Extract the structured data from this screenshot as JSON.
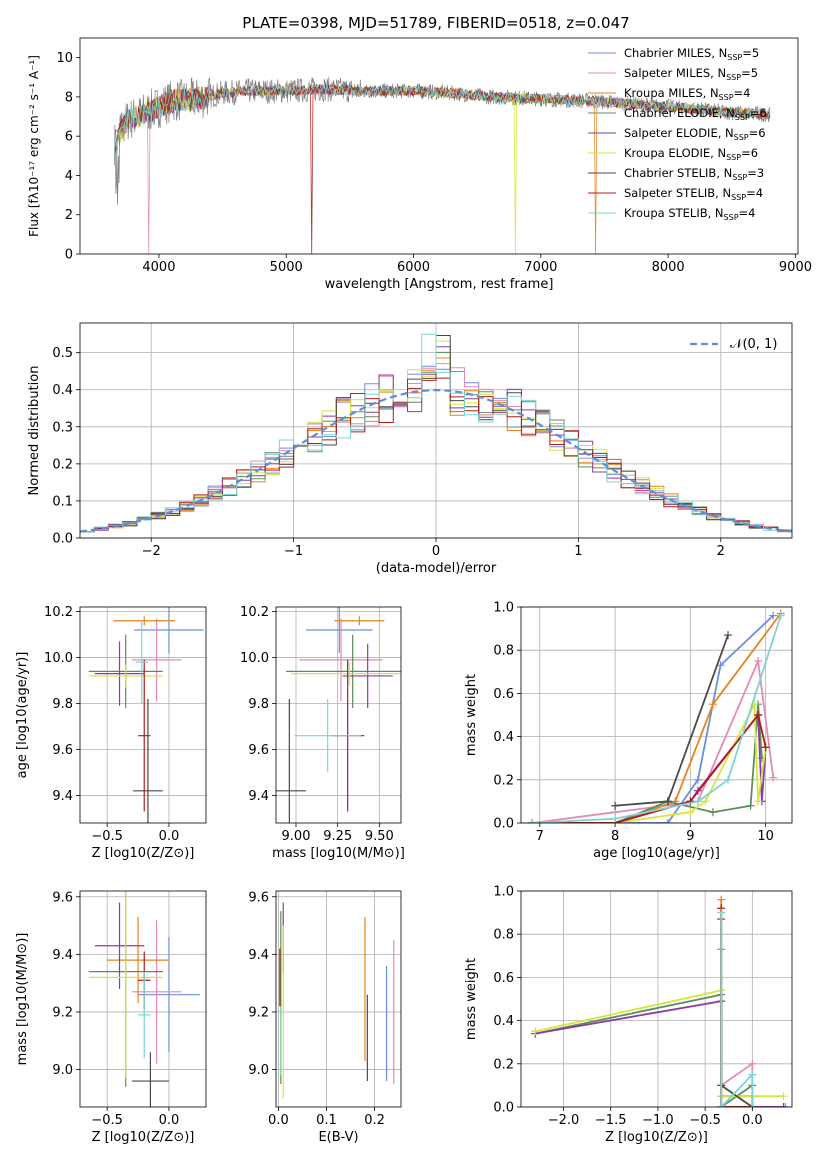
{
  "figure": {
    "title": "PLATE=0398, MJD=51789, FIBERID=0518, z=0.047"
  },
  "colors": {
    "model_colors": [
      "#6B8FDE",
      "#E58AB6",
      "#E8821F",
      "#5A8F5A",
      "#8E3AA6",
      "#D6E63C",
      "#4A4A4A",
      "#B31B1B",
      "#7FD3D6"
    ],
    "data_gray": "#808080",
    "grid": "#b0b0b0",
    "normal_curve": "#5B8EDB"
  },
  "legend_spectrum": [
    {
      "model": "Chabrier MILES",
      "nssp": "5"
    },
    {
      "model": "Salpeter MILES",
      "nssp": "5"
    },
    {
      "model": "Kroupa MILES",
      "nssp": "4"
    },
    {
      "model": "Chabrier ELODIE",
      "nssp": "6"
    },
    {
      "model": "Salpeter ELODIE",
      "nssp": "6"
    },
    {
      "model": "Kroupa ELODIE",
      "nssp": "6"
    },
    {
      "model": "Chabrier STELIB",
      "nssp": "3"
    },
    {
      "model": "Salpeter STELIB",
      "nssp": "4"
    },
    {
      "model": "Kroupa STELIB",
      "nssp": "4"
    }
  ],
  "legend_nssp_prefix": "N",
  "legend_nssp_sub": "SSP",
  "chart_data": [
    {
      "id": "spectrum",
      "type": "line",
      "xlabel": "wavelength [Angstrom, rest frame]",
      "ylabel": "Flux [fλ10⁻¹⁷ erg cm⁻² s⁻¹ A⁻¹]",
      "xlim": [
        3380,
        9020
      ],
      "ylim": [
        0,
        11
      ],
      "xticks": [
        4000,
        5000,
        6000,
        7000,
        8000,
        9000
      ],
      "yticks": [
        0,
        2,
        4,
        6,
        8,
        10
      ],
      "continuum": [
        [
          3650,
          5.6
        ],
        [
          3750,
          6.8
        ],
        [
          3900,
          7.2
        ],
        [
          4100,
          7.8
        ],
        [
          4300,
          7.9
        ],
        [
          4500,
          8.2
        ],
        [
          4700,
          8.3
        ],
        [
          5000,
          8.3
        ],
        [
          5300,
          8.4
        ],
        [
          5600,
          8.3
        ],
        [
          6000,
          8.3
        ],
        [
          6300,
          8.2
        ],
        [
          6600,
          8.0
        ],
        [
          7000,
          7.9
        ],
        [
          7400,
          7.8
        ],
        [
          7800,
          7.6
        ],
        [
          8200,
          7.4
        ],
        [
          8500,
          7.2
        ],
        [
          8800,
          7.1
        ]
      ],
      "notes": "9 model spectra overlaid on observed spectrum (gray); deep drops near 3930, 5200, 6800, 7430 Angstrom"
    },
    {
      "id": "residuals",
      "type": "histogram",
      "xlabel": "(data-model)/error",
      "ylabel": "Normed distribution",
      "xlim": [
        -2.5,
        2.5
      ],
      "ylim": [
        0,
        0.58
      ],
      "xticks": [
        -2,
        -1,
        0,
        1,
        2
      ],
      "yticks": [
        0.0,
        0.1,
        0.2,
        0.3,
        0.4,
        0.5
      ],
      "bin_width": 0.1,
      "bin_start": -2.5,
      "legend": "N(0,1)",
      "grid": true,
      "legend_position": "top-right"
    },
    {
      "id": "age_vs_Z",
      "type": "errorbar",
      "xlabel": "Z [log10(Z/Z⊙)]",
      "ylabel": "age  [log10(age/yr)]",
      "xlim": [
        -0.72,
        0.3
      ],
      "ylim": [
        9.28,
        10.22
      ],
      "xticks": [
        -0.5,
        0.0
      ],
      "yticks": [
        9.4,
        9.6,
        9.8,
        10.0,
        10.2
      ],
      "points": [
        {
          "x": 0.0,
          "xerr": 0.28,
          "y": 10.12,
          "yerr": 0.1
        },
        {
          "x": -0.1,
          "xerr": 0.2,
          "y": 9.99,
          "yerr": 0.18
        },
        {
          "x": -0.2,
          "xerr": 0.25,
          "y": 10.16,
          "yerr": 0.02
        },
        {
          "x": -0.35,
          "xerr": 0.3,
          "y": 9.94,
          "yerr": 0.16
        },
        {
          "x": -0.4,
          "xerr": 0.2,
          "y": 9.93,
          "yerr": 0.14
        },
        {
          "x": -0.35,
          "xerr": 0.3,
          "y": 9.92,
          "yerr": 0.05
        },
        {
          "x": -0.17,
          "xerr": 0.12,
          "y": 9.42,
          "yerr": 0.4
        },
        {
          "x": -0.2,
          "xerr": 0.05,
          "y": 9.66,
          "yerr": 0.33
        },
        {
          "x": -0.22,
          "xerr": 0.05,
          "y": 9.98,
          "yerr": 0.18
        }
      ]
    },
    {
      "id": "age_vs_mass",
      "type": "errorbar",
      "xlabel": "mass [log10(M/M⊙)]",
      "ylabel": "",
      "xlim": [
        8.88,
        9.63
      ],
      "ylim": [
        9.28,
        10.22
      ],
      "xticks": [
        9.0,
        9.25,
        9.5
      ],
      "yticks": [
        9.4,
        9.6,
        9.8,
        10.0,
        10.2
      ],
      "points": [
        {
          "x": 9.26,
          "xerr": 0.2,
          "y": 10.12,
          "yerr": 0.1
        },
        {
          "x": 9.27,
          "xerr": 0.25,
          "y": 9.99,
          "yerr": 0.18
        },
        {
          "x": 9.38,
          "xerr": 0.15,
          "y": 10.16,
          "yerr": 0.02
        },
        {
          "x": 9.34,
          "xerr": 0.4,
          "y": 9.94,
          "yerr": 0.16
        },
        {
          "x": 9.43,
          "xerr": 0.15,
          "y": 9.92,
          "yerr": 0.14
        },
        {
          "x": 9.32,
          "xerr": 0.35,
          "y": 9.93,
          "yerr": 0.05
        },
        {
          "x": 8.96,
          "xerr": 0.1,
          "y": 9.42,
          "yerr": 0.4
        },
        {
          "x": 9.31,
          "xerr": 0.1,
          "y": 9.66,
          "yerr": 0.33
        },
        {
          "x": 9.19,
          "xerr": 0.2,
          "y": 9.66,
          "yerr": 0.16
        }
      ]
    },
    {
      "id": "weight_vs_age",
      "type": "line",
      "xlabel": "age  [log10(age/yr)]",
      "ylabel": "mass weight",
      "xlim": [
        6.75,
        10.35
      ],
      "ylim": [
        0,
        1.0
      ],
      "xticks": [
        7,
        8,
        9,
        10
      ],
      "yticks": [
        0.0,
        0.2,
        0.4,
        0.6,
        0.8,
        1.0
      ],
      "series": [
        {
          "points": [
            [
              6.9,
              0.0
            ],
            [
              8.7,
              0.0
            ],
            [
              9.1,
              0.2
            ],
            [
              9.4,
              0.73
            ],
            [
              10.1,
              0.96
            ]
          ]
        },
        {
          "points": [
            [
              6.9,
              0.0
            ],
            [
              8.0,
              0.05
            ],
            [
              9.1,
              0.1
            ],
            [
              9.9,
              0.75
            ],
            [
              10.1,
              0.21
            ]
          ]
        },
        {
          "points": [
            [
              6.9,
              0.0
            ],
            [
              8.0,
              0.0
            ],
            [
              8.8,
              0.1
            ],
            [
              9.3,
              0.55
            ],
            [
              10.2,
              0.97
            ]
          ]
        },
        {
          "points": [
            [
              6.9,
              0.0
            ],
            [
              8.0,
              0.0
            ],
            [
              8.7,
              0.1
            ],
            [
              9.3,
              0.05
            ],
            [
              9.8,
              0.08
            ],
            [
              9.9,
              0.55
            ],
            [
              9.95,
              0.3
            ]
          ]
        },
        {
          "points": [
            [
              6.9,
              0.0
            ],
            [
              8.0,
              0.0
            ],
            [
              9.0,
              0.1
            ],
            [
              9.1,
              0.15
            ],
            [
              9.9,
              0.5
            ],
            [
              9.95,
              0.1
            ],
            [
              10.0,
              0.35
            ]
          ]
        },
        {
          "points": [
            [
              6.9,
              0.0
            ],
            [
              8.0,
              0.0
            ],
            [
              9.0,
              0.05
            ],
            [
              9.2,
              0.1
            ],
            [
              9.85,
              0.55
            ],
            [
              9.9,
              0.1
            ],
            [
              10.0,
              0.35
            ]
          ]
        },
        {
          "points": [
            [
              8.0,
              0.08
            ],
            [
              8.7,
              0.1
            ],
            [
              9.5,
              0.87
            ]
          ]
        },
        {
          "points": [
            [
              6.9,
              0.0
            ],
            [
              8.0,
              0.0
            ],
            [
              9.0,
              0.1
            ],
            [
              9.9,
              0.5
            ],
            [
              10.0,
              0.35
            ]
          ]
        },
        {
          "points": [
            [
              6.9,
              0.0
            ],
            [
              8.0,
              0.02
            ],
            [
              9.1,
              0.1
            ],
            [
              9.5,
              0.2
            ],
            [
              10.2,
              0.96
            ]
          ]
        }
      ]
    },
    {
      "id": "mass_vs_Z",
      "type": "errorbar",
      "xlabel": "Z [log10(Z/Z⊙)]",
      "ylabel": "mass [log10(M/M⊙)]",
      "xlim": [
        -0.72,
        0.3
      ],
      "ylim": [
        8.87,
        9.62
      ],
      "xticks": [
        -0.5,
        0.0
      ],
      "yticks": [
        9.0,
        9.2,
        9.4,
        9.6
      ],
      "points": [
        {
          "x": 0.0,
          "xerr": 0.25,
          "y": 9.26,
          "yerr": 0.2
        },
        {
          "x": -0.1,
          "xerr": 0.2,
          "y": 9.27,
          "yerr": 0.25
        },
        {
          "x": -0.25,
          "xerr": 0.25,
          "y": 9.38,
          "yerr": 0.15
        },
        {
          "x": -0.35,
          "xerr": 0.3,
          "y": 9.34,
          "yerr": 0.4
        },
        {
          "x": -0.4,
          "xerr": 0.2,
          "y": 9.43,
          "yerr": 0.15
        },
        {
          "x": -0.35,
          "xerr": 0.3,
          "y": 9.32,
          "yerr": 0.35
        },
        {
          "x": -0.15,
          "xerr": 0.15,
          "y": 8.96,
          "yerr": 0.1
        },
        {
          "x": -0.2,
          "xerr": 0.05,
          "y": 9.31,
          "yerr": 0.1
        },
        {
          "x": -0.2,
          "xerr": 0.05,
          "y": 9.19,
          "yerr": 0.15
        }
      ]
    },
    {
      "id": "mass_vs_EBV",
      "type": "errorbar",
      "xlabel": "E(B-V)",
      "ylabel": "",
      "xlim": [
        -0.005,
        0.255
      ],
      "ylim": [
        8.87,
        9.62
      ],
      "xticks": [
        0.0,
        0.1,
        0.2
      ],
      "yticks": [
        9.0,
        9.2,
        9.4,
        9.6
      ],
      "points": [
        {
          "x": 0.225,
          "yerr": 0.2,
          "y": 9.16
        },
        {
          "x": 0.24,
          "yerr": 0.25,
          "y": 9.2
        },
        {
          "x": 0.18,
          "yerr": 0.25,
          "y": 9.28
        },
        {
          "x": 0.005,
          "yerr": 0.3,
          "y": 9.25
        },
        {
          "x": 0.01,
          "yerr": 0.12,
          "y": 9.46
        },
        {
          "x": 0.01,
          "yerr": 0.3,
          "y": 9.2
        },
        {
          "x": 0.185,
          "yerr": 0.15,
          "y": 9.11
        },
        {
          "x": 0.003,
          "yerr": 0.1,
          "y": 9.32
        },
        {
          "x": 0.005,
          "yerr": 0.12,
          "y": 9.1
        }
      ]
    },
    {
      "id": "weight_vs_Z",
      "type": "line",
      "xlabel": "Z [log10(Z/Z⊙)]",
      "ylabel": "mass weight",
      "xlim": [
        -2.45,
        0.42
      ],
      "ylim": [
        0,
        1.0
      ],
      "xticks": [
        -2.0,
        -1.5,
        -1.0,
        -0.5,
        0.0
      ],
      "yticks": [
        0.0,
        0.2,
        0.4,
        0.6,
        0.8,
        1.0
      ],
      "series": [
        {
          "points": [
            [
              -0.33,
              0.73
            ],
            [
              -0.33,
              0.0
            ],
            [
              0.0,
              0.0
            ],
            [
              0.35,
              0.0
            ]
          ]
        },
        {
          "points": [
            [
              -0.33,
              0.0
            ],
            [
              -0.33,
              0.1
            ],
            [
              0.0,
              0.2
            ],
            [
              0.0,
              0.0
            ]
          ]
        },
        {
          "points": [
            [
              -0.33,
              0.96
            ],
            [
              -0.33,
              0.0
            ],
            [
              0.0,
              0.0
            ]
          ]
        },
        {
          "points": [
            [
              -2.3,
              0.34
            ],
            [
              -0.33,
              0.52
            ],
            [
              -0.33,
              0.0
            ],
            [
              0.0,
              0.1
            ]
          ]
        },
        {
          "points": [
            [
              -2.3,
              0.34
            ],
            [
              -0.33,
              0.49
            ],
            [
              -0.33,
              0.05
            ],
            [
              0.0,
              0.05
            ],
            [
              0.0,
              0.0
            ],
            [
              0.33,
              0.0
            ]
          ]
        },
        {
          "points": [
            [
              -2.3,
              0.35
            ],
            [
              -0.33,
              0.54
            ],
            [
              -0.33,
              0.05
            ],
            [
              0.0,
              0.05
            ],
            [
              0.33,
              0.05
            ]
          ]
        },
        {
          "points": [
            [
              -0.33,
              0.87
            ],
            [
              -0.33,
              0.1
            ],
            [
              0.0,
              0.0
            ]
          ]
        },
        {
          "points": [
            [
              -0.33,
              0.92
            ],
            [
              -0.33,
              0.0
            ],
            [
              0.0,
              0.0
            ]
          ]
        },
        {
          "points": [
            [
              -0.33,
              0.9
            ],
            [
              -0.33,
              0.0
            ],
            [
              0.0,
              0.15
            ],
            [
              0.0,
              0.0
            ]
          ]
        }
      ]
    }
  ]
}
